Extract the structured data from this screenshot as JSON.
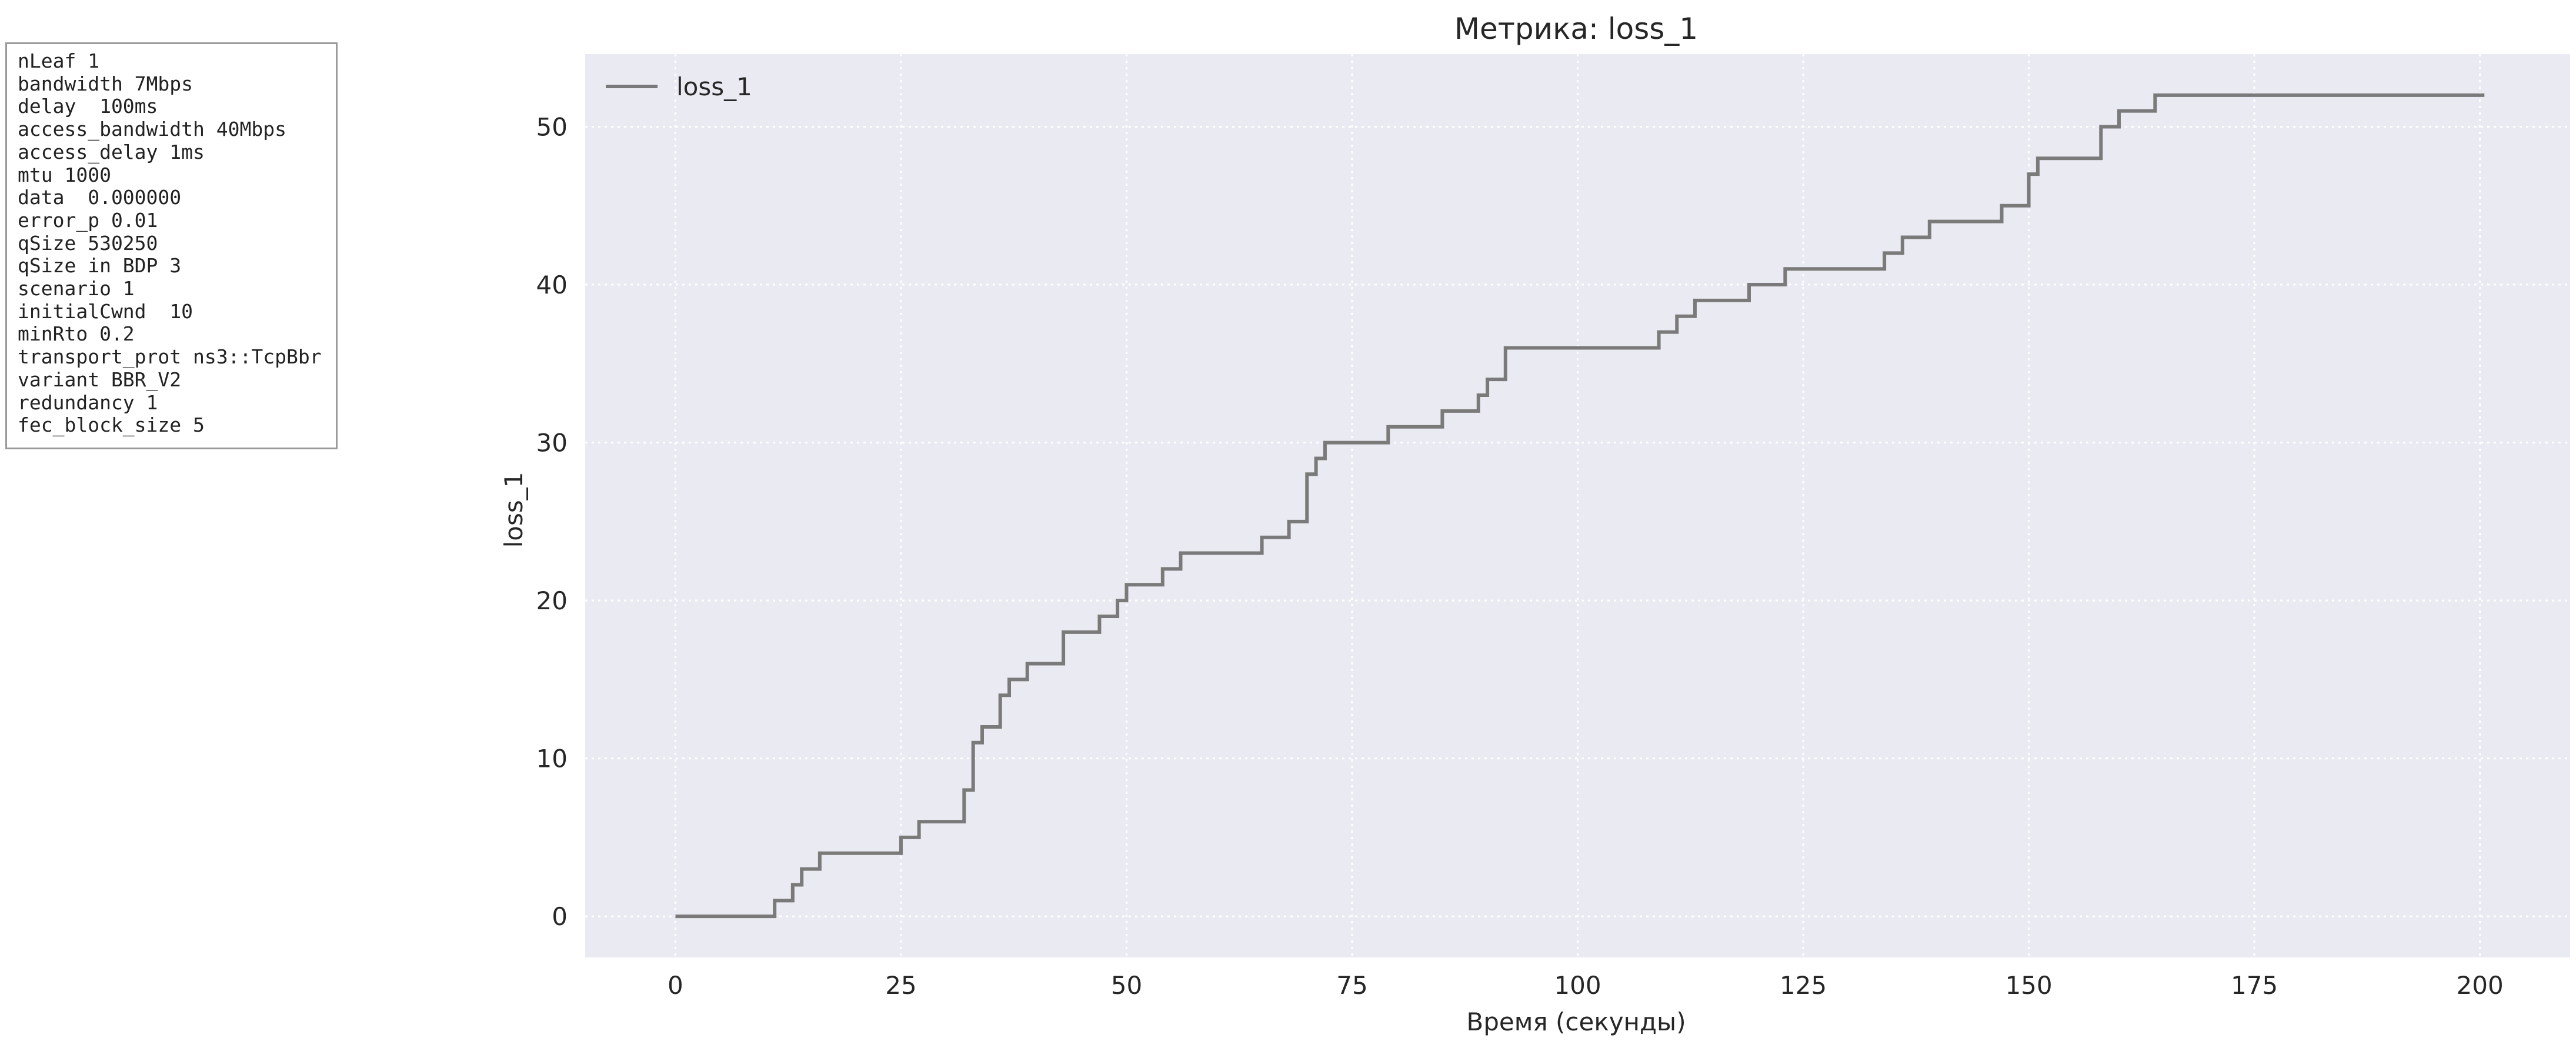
{
  "params": [
    "nLeaf 1",
    "bandwidth 7Mbps",
    "delay  100ms",
    "access_bandwidth 40Mbps",
    "access_delay 1ms",
    "mtu 1000",
    "data  0.000000",
    "error_p 0.01",
    "qSize 530250",
    "qSize in BDP 3",
    "scenario 1",
    "initialCwnd  10",
    "minRto 0.2",
    "transport_prot ns3::TcpBbr",
    "variant BBR_V2",
    "redundancy 1",
    "fec_block_size 5"
  ],
  "chart_data": {
    "type": "line",
    "title": "Метрика: loss_1",
    "xlabel": "Время (секунды)",
    "ylabel": "loss_1",
    "xlim": [
      -10,
      210
    ],
    "ylim": [
      -2.6,
      54.6
    ],
    "xticks": [
      0,
      25,
      50,
      75,
      100,
      125,
      150,
      175,
      200
    ],
    "yticks": [
      0,
      10,
      20,
      30,
      40,
      50
    ],
    "grid": true,
    "legend": "top-left",
    "step": "post",
    "colors": {
      "line": "#7a7a7a",
      "plot_bg": "#eaeaf2",
      "grid": "#ffffff"
    },
    "series": [
      {
        "name": "loss_1",
        "points": [
          [
            0,
            0
          ],
          [
            11,
            1
          ],
          [
            13,
            2
          ],
          [
            14,
            3
          ],
          [
            16,
            4
          ],
          [
            25,
            5
          ],
          [
            27,
            6
          ],
          [
            32,
            8
          ],
          [
            33,
            11
          ],
          [
            34,
            12
          ],
          [
            36,
            14
          ],
          [
            37,
            15
          ],
          [
            39,
            16
          ],
          [
            43,
            18
          ],
          [
            47,
            19
          ],
          [
            49,
            20
          ],
          [
            50,
            21
          ],
          [
            54,
            22
          ],
          [
            56,
            23
          ],
          [
            65,
            24
          ],
          [
            68,
            25
          ],
          [
            70,
            28
          ],
          [
            71,
            29
          ],
          [
            72,
            30
          ],
          [
            79,
            31
          ],
          [
            85,
            32
          ],
          [
            89,
            33
          ],
          [
            90,
            34
          ],
          [
            92,
            36
          ],
          [
            109,
            37
          ],
          [
            111,
            38
          ],
          [
            113,
            39
          ],
          [
            119,
            40
          ],
          [
            123,
            41
          ],
          [
            134,
            42
          ],
          [
            136,
            43
          ],
          [
            139,
            44
          ],
          [
            147,
            45
          ],
          [
            150,
            47
          ],
          [
            151,
            48
          ],
          [
            158,
            50
          ],
          [
            160,
            51
          ],
          [
            164,
            52
          ],
          [
            200.5,
            52
          ]
        ]
      }
    ]
  }
}
